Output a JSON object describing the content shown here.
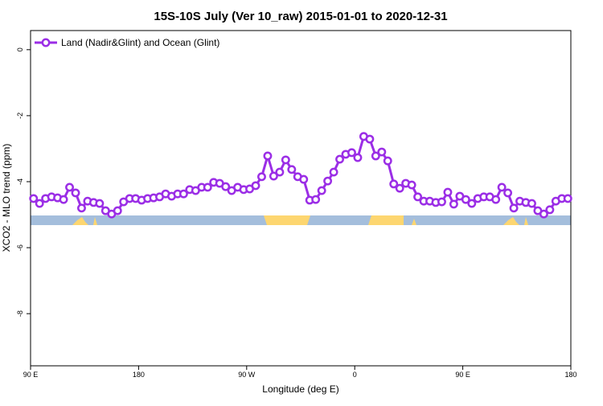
{
  "chart_data": {
    "type": "line",
    "title": "15S-10S July (Ver 10_raw)   2015-01-01 to 2020-12-31",
    "x_label": "Longitude (deg E)",
    "y_label": "XCO2 - MLO trend (ppm)",
    "x": [
      92.5,
      97.5,
      102.5,
      107.5,
      112.5,
      117.5,
      122.5,
      127.5,
      132.5,
      137.5,
      142.5,
      147.5,
      152.5,
      157.5,
      162.5,
      167.5,
      172.5,
      177.5,
      182.5,
      187.5,
      192.5,
      197.5,
      202.5,
      207.5,
      212.5,
      217.5,
      222.5,
      227.5,
      232.5,
      237.5,
      242.5,
      247.5,
      252.5,
      257.5,
      262.5,
      267.5,
      272.5,
      277.5,
      282.5,
      287.5,
      292.5,
      297.5,
      302.5,
      307.5,
      312.5,
      317.5,
      322.5,
      327.5,
      332.5,
      337.5,
      342.5,
      347.5,
      352.5,
      357.5,
      362.5,
      367.5,
      372.5,
      377.5,
      382.5,
      387.5,
      392.5,
      397.5,
      402.5,
      407.5,
      412.5,
      417.5,
      422.5,
      427.5,
      432.5,
      437.5,
      442.5,
      447.5,
      452.5,
      457.5,
      462.5,
      467.5,
      472.5,
      477.5,
      482.5,
      487.5,
      492.5,
      497.5,
      502.5,
      507.5,
      512.5,
      517.5,
      522.5,
      527.5,
      532.5,
      537.5
    ],
    "series": [
      {
        "name": "Land (Nadir&Glint) and Ocean (Glint)",
        "color": "#9b2ee6",
        "values": [
          -4.51,
          -4.66,
          -4.51,
          -4.46,
          -4.49,
          -4.54,
          -4.17,
          -4.34,
          -4.8,
          -4.59,
          -4.63,
          -4.66,
          -4.88,
          -4.98,
          -4.88,
          -4.61,
          -4.51,
          -4.51,
          -4.56,
          -4.51,
          -4.49,
          -4.46,
          -4.37,
          -4.44,
          -4.37,
          -4.37,
          -4.24,
          -4.27,
          -4.17,
          -4.17,
          -4.02,
          -4.05,
          -4.15,
          -4.27,
          -4.17,
          -4.24,
          -4.22,
          -4.12,
          -3.85,
          -3.22,
          -3.83,
          -3.71,
          -3.34,
          -3.63,
          -3.85,
          -3.93,
          -4.56,
          -4.54,
          -4.27,
          -3.98,
          -3.71,
          -3.32,
          -3.17,
          -3.12,
          -3.27,
          -2.63,
          -2.71,
          -3.22,
          -3.1,
          -3.37,
          -4.07,
          -4.2,
          -4.05,
          -4.1,
          -4.46,
          -4.59,
          -4.59,
          -4.63,
          -4.61,
          -4.32,
          -4.68,
          -4.44,
          -4.54,
          -4.66,
          -4.51,
          -4.46,
          -4.46,
          -4.54,
          -4.17,
          -4.34,
          -4.8,
          -4.59,
          -4.63,
          -4.66,
          -4.88,
          -4.98,
          -4.85,
          -4.59,
          -4.51,
          -4.51
        ]
      }
    ],
    "xlim": [
      90,
      540
    ],
    "xticks": [
      {
        "value": 90,
        "label": "90 E"
      },
      180,
      {
        "value": 270,
        "label": "90 W"
      },
      {
        "value": 360,
        "label": "0"
      },
      {
        "value": 450,
        "label": "90 E"
      },
      {
        "value": 540,
        "label": "180"
      }
    ],
    "ylim": [
      -9.58,
      0.58
    ],
    "yticks": [
      0,
      -2,
      -4,
      -6,
      -8
    ],
    "legend": "top-left"
  }
}
